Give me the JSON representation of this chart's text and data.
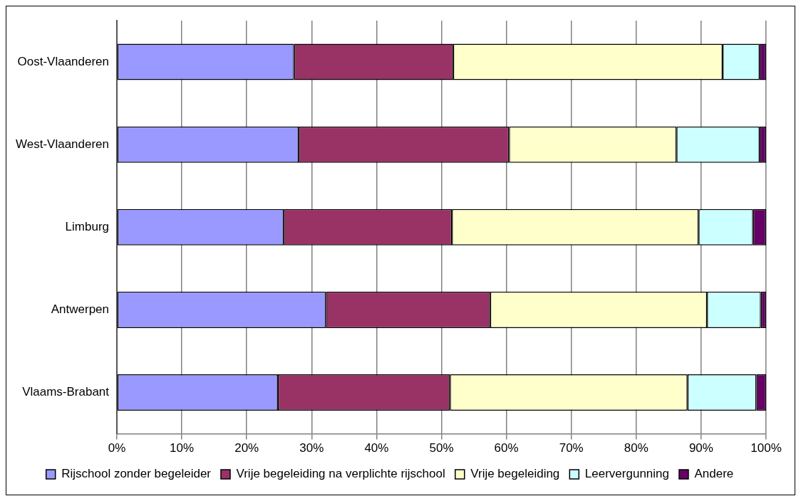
{
  "chart_data": {
    "type": "bar",
    "orientation": "horizontal",
    "stacked": true,
    "categories": [
      "Oost-Vlaanderen",
      "West-Vlaanderen",
      "Limburg",
      "Antwerpen",
      "Vlaams-Brabant"
    ],
    "series": [
      {
        "name": "Rijschool zonder begeleider",
        "color": "#9999ff",
        "values": [
          27.3,
          28.0,
          25.7,
          32.2,
          24.8
        ]
      },
      {
        "name": "Vrije begeleiding na verplichte rijschool",
        "color": "#993366",
        "values": [
          24.5,
          32.4,
          25.9,
          25.3,
          26.5
        ]
      },
      {
        "name": "Vrije begeleiding",
        "color": "#ffffcc",
        "values": [
          41.5,
          25.8,
          38.0,
          33.4,
          36.6
        ]
      },
      {
        "name": "Leervergunning",
        "color": "#ccffff",
        "values": [
          5.7,
          12.8,
          8.4,
          8.3,
          10.6
        ]
      },
      {
        "name": "Andere",
        "color": "#660066",
        "values": [
          1.0,
          1.0,
          2.0,
          0.8,
          1.5
        ]
      }
    ],
    "xlim": [
      0,
      100
    ],
    "xticks": [
      {
        "value": 0,
        "label": "0%"
      },
      {
        "value": 10,
        "label": "10%"
      },
      {
        "value": 20,
        "label": "20%"
      },
      {
        "value": 30,
        "label": "30%"
      },
      {
        "value": 40,
        "label": "40%"
      },
      {
        "value": 50,
        "label": "50%"
      },
      {
        "value": 60,
        "label": "60%"
      },
      {
        "value": 70,
        "label": "70%"
      },
      {
        "value": 80,
        "label": "80%"
      },
      {
        "value": 90,
        "label": "90%"
      },
      {
        "value": 100,
        "label": "100%"
      }
    ],
    "grid": "x",
    "legend": "bottom"
  }
}
